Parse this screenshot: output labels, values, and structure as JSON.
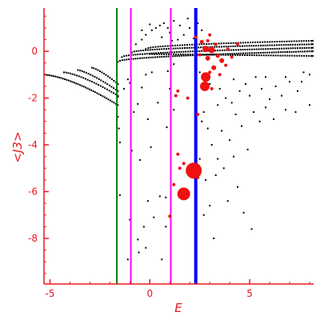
{
  "chart_data": {
    "type": "scatter",
    "xlabel": "E",
    "ylabel": "<J3>",
    "xlim": [
      -5.3,
      8.2
    ],
    "ylim": [
      -9.95,
      1.85
    ],
    "xticks": [
      {
        "value": -5,
        "label": "-5"
      },
      {
        "value": 0,
        "label": "0"
      },
      {
        "value": 5,
        "label": "5"
      }
    ],
    "yticks": [
      {
        "value": 0,
        "label": "0"
      },
      {
        "value": -2,
        "label": "-2"
      },
      {
        "value": -4,
        "label": "-4"
      },
      {
        "value": -6,
        "label": "-6"
      },
      {
        "value": -8,
        "label": "-8"
      }
    ],
    "grid": false,
    "colors": {
      "axes": "#e8191f",
      "points": "#000000",
      "highlight": "#ee1111"
    },
    "vertical_lines": [
      {
        "x": -1.65,
        "color": "#008000",
        "weight": "thin"
      },
      {
        "x": -0.95,
        "color": "#ff00ff",
        "weight": "thin"
      },
      {
        "x": 1.05,
        "color": "#ff00ff",
        "weight": "thin"
      },
      {
        "x": 2.3,
        "color": "#0000ff",
        "weight": "thick"
      }
    ],
    "bands": [
      {
        "x0": -5.3,
        "x1": -1.6,
        "y0": -1.0,
        "y1": -2.3,
        "curve": 1.5,
        "n": 40
      },
      {
        "x0": -4.3,
        "x1": -1.6,
        "y0": -0.9,
        "y1": -1.9,
        "curve": 1.4,
        "n": 26
      },
      {
        "x0": -3.6,
        "x1": -1.6,
        "y0": -0.8,
        "y1": -1.7,
        "curve": 1.3,
        "n": 20
      },
      {
        "x0": -2.9,
        "x1": -1.6,
        "y0": -0.7,
        "y1": -1.4,
        "curve": 1.3,
        "n": 14
      },
      {
        "x0": -1.6,
        "x1": 8.2,
        "y0": -0.45,
        "y1": 0.0,
        "curve": 0.5,
        "n": 90
      },
      {
        "x0": -1.4,
        "x1": 8.2,
        "y0": -0.25,
        "y1": 0.15,
        "curve": 0.5,
        "n": 85
      },
      {
        "x0": -0.9,
        "x1": 8.2,
        "y0": -0.05,
        "y1": 0.3,
        "curve": 0.5,
        "n": 80
      },
      {
        "x0": -0.2,
        "x1": 8.2,
        "y0": 0.1,
        "y1": 0.45,
        "curve": 0.5,
        "n": 70
      },
      {
        "x0": 0.0,
        "x1": 8.2,
        "y0": -0.12,
        "y1": -0.2,
        "curve": 1.0,
        "n": 70
      }
    ],
    "points": [
      [
        -1.6,
        -1.95
      ],
      [
        -1.6,
        -2.8
      ],
      [
        -1.55,
        -3.3
      ],
      [
        -1.5,
        -3.9
      ],
      [
        -1.5,
        -6.15
      ],
      [
        -1.3,
        -1.6
      ],
      [
        -1.1,
        -1.2
      ],
      [
        -1.0,
        -1.35
      ],
      [
        -0.8,
        -2.6
      ],
      [
        -0.6,
        -2.25
      ],
      [
        -0.5,
        -4.65
      ],
      [
        -0.4,
        -1.55
      ],
      [
        -0.2,
        -1.0
      ],
      [
        -0.3,
        -7.5
      ],
      [
        -0.1,
        -2.9
      ],
      [
        0.05,
        -4.1
      ],
      [
        0.1,
        -0.9
      ],
      [
        -0.1,
        -6.4
      ],
      [
        -0.6,
        -8.05
      ],
      [
        -0.55,
        -8.6
      ],
      [
        -0.2,
        -8.4
      ],
      [
        -1.1,
        -8.9
      ],
      [
        -1.0,
        -7.2
      ],
      [
        -0.9,
        -4.25
      ],
      [
        0.2,
        -7.1
      ],
      [
        0.4,
        -2.2
      ],
      [
        0.5,
        -6.2
      ],
      [
        0.6,
        -8.9
      ],
      [
        0.8,
        -6.25
      ],
      [
        0.8,
        -7.5
      ],
      [
        0.9,
        -0.85
      ],
      [
        0.85,
        -3.25
      ],
      [
        1.0,
        -1.6
      ],
      [
        1.2,
        -2.5
      ],
      [
        1.2,
        -0.55
      ],
      [
        -0.7,
        0.3
      ],
      [
        -0.4,
        0.5
      ],
      [
        -0.2,
        0.7
      ],
      [
        0.1,
        0.9
      ],
      [
        0.3,
        1.0
      ],
      [
        0.5,
        1.1
      ],
      [
        0.7,
        1.2
      ],
      [
        0.9,
        1.0
      ],
      [
        1.0,
        0.8
      ],
      [
        1.2,
        1.3
      ],
      [
        1.5,
        1.1
      ],
      [
        1.7,
        0.7
      ],
      [
        1.9,
        1.4
      ],
      [
        2.0,
        1.0
      ],
      [
        2.4,
        1.2
      ],
      [
        2.6,
        0.9
      ],
      [
        -0.4,
        0.9
      ],
      [
        0.0,
        1.15
      ],
      [
        0.6,
        0.6
      ],
      [
        1.1,
        0.45
      ],
      [
        1.4,
        0.5
      ],
      [
        2.2,
        0.55
      ],
      [
        2.5,
        -0.9
      ],
      [
        3.0,
        -1.4
      ],
      [
        3.2,
        -0.75
      ],
      [
        3.5,
        -1.6
      ],
      [
        3.8,
        -2.0
      ],
      [
        4.2,
        -1.2
      ],
      [
        4.5,
        -1.7
      ],
      [
        5.0,
        -1.9
      ],
      [
        5.3,
        -1.1
      ],
      [
        5.6,
        -1.6
      ],
      [
        6.0,
        -2.05
      ],
      [
        6.3,
        -1.5
      ],
      [
        6.6,
        -1.9
      ],
      [
        7.0,
        -1.3
      ],
      [
        7.4,
        -1.7
      ],
      [
        7.7,
        -0.9
      ],
      [
        8.0,
        -1.0
      ],
      [
        2.7,
        -2.6
      ],
      [
        3.4,
        -2.3
      ],
      [
        4.8,
        -1.4
      ],
      [
        5.8,
        -1.1
      ],
      [
        6.8,
        -1.1
      ],
      [
        7.6,
        -1.3
      ],
      [
        2.9,
        -3.3
      ],
      [
        3.3,
        -5.3
      ],
      [
        3.6,
        -3.4
      ],
      [
        3.9,
        -6.4
      ],
      [
        4.0,
        -3.8
      ],
      [
        4.2,
        -4.5
      ],
      [
        4.4,
        -5.8
      ],
      [
        4.6,
        -3.2
      ],
      [
        4.7,
        -6.9
      ],
      [
        4.9,
        -4.2
      ],
      [
        5.1,
        -7.6
      ],
      [
        5.2,
        -2.6
      ],
      [
        5.5,
        -3.0
      ],
      [
        5.8,
        -2.4
      ],
      [
        6.2,
        -2.9
      ],
      [
        6.8,
        -2.5
      ],
      [
        7.3,
        -2.6
      ],
      [
        8.0,
        -2.3
      ],
      [
        3.1,
        -4.0
      ],
      [
        3.7,
        -5.0
      ],
      [
        4.3,
        -2.7
      ],
      [
        3.2,
        -8.0
      ],
      [
        2.6,
        -3.0
      ],
      [
        2.5,
        -4.6
      ],
      [
        2.8,
        -5.5
      ],
      [
        3.0,
        -6.6
      ],
      [
        3.4,
        -4.6
      ],
      [
        2.7,
        -7.0
      ],
      [
        4.1,
        -2.2
      ]
    ],
    "highlights": [
      {
        "x": 2.2,
        "y": -5.1,
        "r": 10
      },
      {
        "x": 1.7,
        "y": -6.1,
        "r": 8
      },
      {
        "x": 2.8,
        "y": -1.1,
        "r": 6
      },
      {
        "x": 2.75,
        "y": -1.5,
        "r": 6
      },
      {
        "x": 2.8,
        "y": 0.1,
        "r": 4
      },
      {
        "x": 3.1,
        "y": 0.05,
        "r": 4
      },
      {
        "x": 2.9,
        "y": -0.3,
        "r": 3
      },
      {
        "x": 3.2,
        "y": -0.7,
        "r": 3
      },
      {
        "x": 3.6,
        "y": -0.4,
        "r": 3
      },
      {
        "x": 3.4,
        "y": -0.2,
        "r": 2.5
      },
      {
        "x": 2.6,
        "y": 0.4,
        "r": 2.5
      },
      {
        "x": 2.9,
        "y": 0.45,
        "r": 2
      },
      {
        "x": 3.3,
        "y": 0.3,
        "r": 2
      },
      {
        "x": 3.9,
        "y": 0.1,
        "r": 2
      },
      {
        "x": 4.1,
        "y": -0.25,
        "r": 2
      },
      {
        "x": 2.5,
        "y": -0.15,
        "r": 2
      },
      {
        "x": 3.0,
        "y": -0.9,
        "r": 2
      },
      {
        "x": 3.5,
        "y": -1.0,
        "r": 2
      },
      {
        "x": 3.8,
        "y": -0.6,
        "r": 2
      },
      {
        "x": 4.4,
        "y": 0.3,
        "r": 2
      },
      {
        "x": 2.3,
        "y": 0.6,
        "r": 2
      },
      {
        "x": 3.1,
        "y": -1.6,
        "r": 2
      },
      {
        "x": 2.4,
        "y": -2.7,
        "r": 2
      },
      {
        "x": 1.9,
        "y": -2.0,
        "r": 2
      },
      {
        "x": 1.4,
        "y": -1.7,
        "r": 2
      },
      {
        "x": 1.4,
        "y": -4.4,
        "r": 2
      },
      {
        "x": 1.2,
        "y": -5.7,
        "r": 2
      },
      {
        "x": 1.0,
        "y": -7.05,
        "r": 2
      },
      {
        "x": 1.7,
        "y": -4.8,
        "r": 2
      },
      {
        "x": 1.5,
        "y": -5.0,
        "r": 2
      },
      {
        "x": 2.4,
        "y": -5.4,
        "r": 2
      },
      {
        "x": 3.0,
        "y": 0.7,
        "r": 2
      },
      {
        "x": 1.3,
        "y": -1.9,
        "r": 2
      }
    ]
  }
}
